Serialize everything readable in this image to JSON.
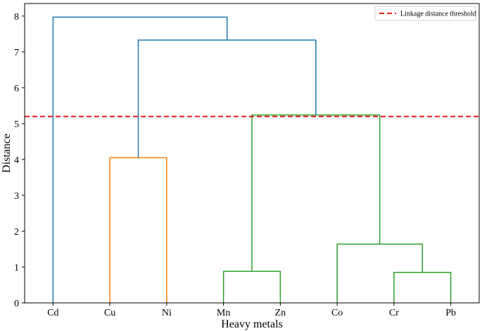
{
  "chart_data": {
    "type": "dendrogram",
    "xlabel": "Heavy metals",
    "ylabel": "Distance",
    "ylim": [
      0,
      8.35
    ],
    "yticks": [
      0,
      1,
      2,
      3,
      4,
      5,
      6,
      7,
      8
    ],
    "leaves": [
      "Cd",
      "Cu",
      "Ni",
      "Mn",
      "Zn",
      "Co",
      "Cr",
      "Pb"
    ],
    "threshold": {
      "value": 5.2,
      "label": "Linkage distance threshold",
      "color": "#e41a1c"
    },
    "legend_position": "top-right",
    "grid": false,
    "colors": {
      "above_threshold": "#1f77b4",
      "cluster_1": "#ff7f0e",
      "cluster_2": "#2ca02c"
    },
    "links": [
      {
        "name": "Cu-Ni",
        "left": 1,
        "right": 2,
        "left_height": 0,
        "right_height": 0,
        "height": 4.05,
        "color": "cluster_1"
      },
      {
        "name": "Mn-Zn",
        "left": 3,
        "right": 4,
        "left_height": 0,
        "right_height": 0,
        "height": 0.88,
        "color": "cluster_2"
      },
      {
        "name": "Cr-Pb",
        "left": 6,
        "right": 7,
        "left_height": 0,
        "right_height": 0,
        "height": 0.85,
        "color": "cluster_2"
      },
      {
        "name": "Co-CrPb",
        "left": 5,
        "right": 6.5,
        "left_height": 0,
        "right_height": 0.85,
        "height": 1.64,
        "color": "cluster_2"
      },
      {
        "name": "MnZn-CoCrPb",
        "left": 3.5,
        "right": 5.75,
        "left_height": 0.88,
        "right_height": 1.64,
        "height": 5.24,
        "color": "cluster_2"
      },
      {
        "name": "CuNi-rest",
        "left": 1.5,
        "right": 4.625,
        "left_height": 4.05,
        "right_height": 5.24,
        "height": 7.33,
        "color": "above_threshold"
      },
      {
        "name": "Cd-rest",
        "left": 0,
        "right": 3.0625,
        "left_height": 0,
        "right_height": 7.33,
        "height": 7.97,
        "color": "above_threshold"
      }
    ]
  }
}
